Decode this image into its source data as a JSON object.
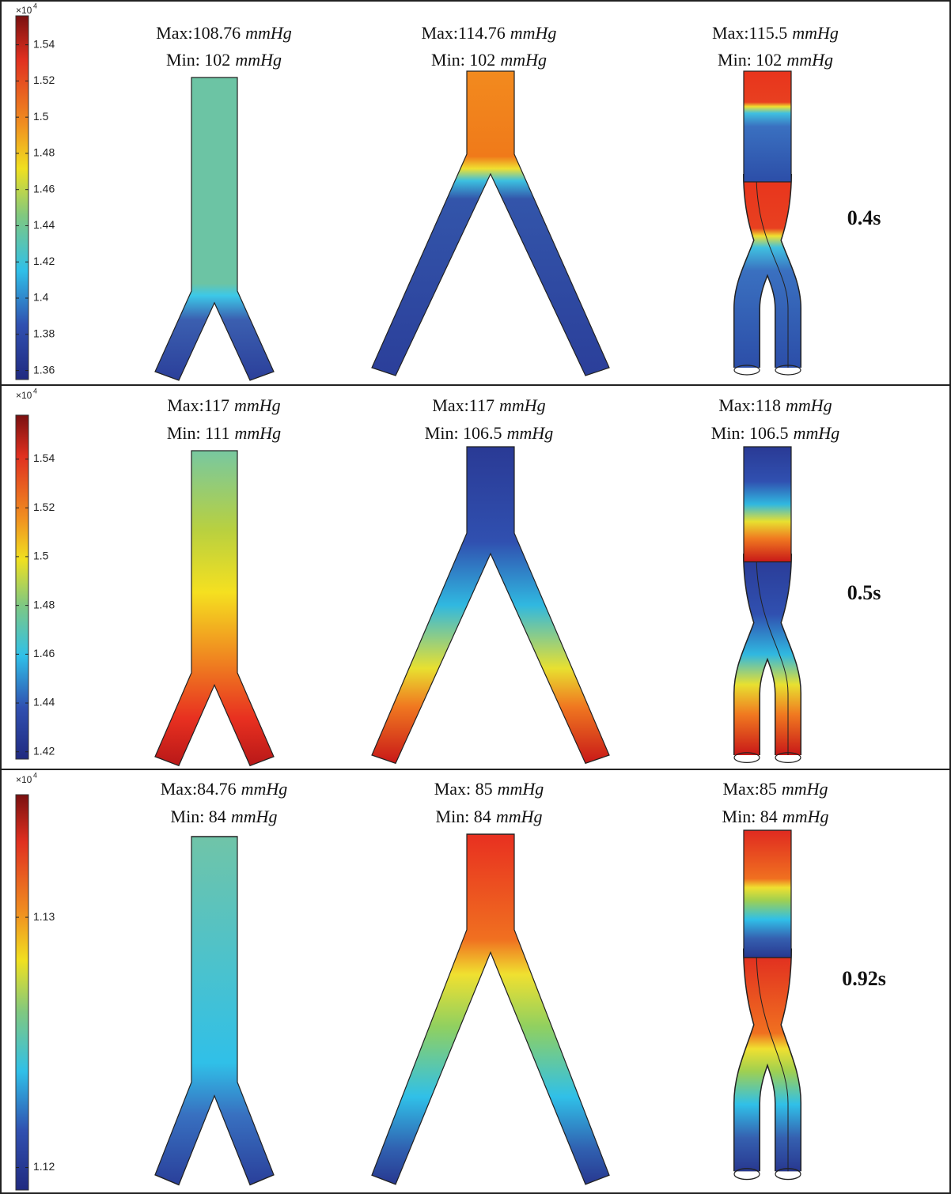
{
  "rows": [
    {
      "colorbar": {
        "multiplier": "×10",
        "exponent": "4",
        "lim": [
          1.355,
          1.556
        ],
        "ticks": [
          1.54,
          1.52,
          1.5,
          1.48,
          1.46,
          1.44,
          1.42,
          1.4,
          1.38,
          1.36
        ]
      },
      "panels": [
        {
          "max": "Max:108.76",
          "max_unit": "mmHg",
          "min": "Min: 102",
          "min_unit": "mmHg"
        },
        {
          "max": "Max:114.76",
          "max_unit": "mmHg",
          "min": "Min: 102",
          "min_unit": "mmHg"
        },
        {
          "max": "Max:115.5",
          "max_unit": "mmHg",
          "min": "Min: 102",
          "min_unit": "mmHg"
        }
      ],
      "time": "0.4s"
    },
    {
      "colorbar": {
        "multiplier": "×10",
        "exponent": "4",
        "lim": [
          1.417,
          1.558
        ],
        "ticks": [
          1.54,
          1.52,
          1.5,
          1.48,
          1.46,
          1.44,
          1.42
        ]
      },
      "panels": [
        {
          "max": "Max:117",
          "max_unit": "mmHg",
          "min": "Min: 111",
          "min_unit": "mmHg"
        },
        {
          "max": "Max:117",
          "max_unit": "mmHg",
          "min": "Min: 106.5",
          "min_unit": "mmHg"
        },
        {
          "max": "Max:118",
          "max_unit": "mmHg",
          "min": "Min: 106.5",
          "min_unit": "mmHg"
        }
      ],
      "time": "0.5s"
    },
    {
      "colorbar": {
        "multiplier": "×10",
        "exponent": "4",
        "lim": [
          1.1191,
          1.1349
        ],
        "ticks": [
          1.13,
          1.12
        ]
      },
      "panels": [
        {
          "max": "Max:84.76",
          "max_unit": "mmHg",
          "min": "Min: 84",
          "min_unit": "mmHg"
        },
        {
          "max": "Max: 85",
          "max_unit": "mmHg",
          "min": "Min: 84",
          "min_unit": "mmHg"
        },
        {
          "max": "Max:85",
          "max_unit": "mmHg",
          "min": "Min: 84",
          "min_unit": "mmHg"
        }
      ],
      "time": "0.92s"
    }
  ]
}
